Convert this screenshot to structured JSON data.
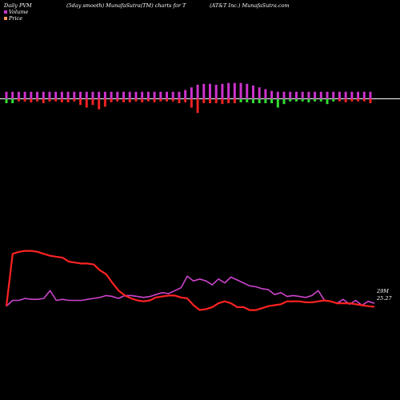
{
  "header": {
    "left": "Daily PVM",
    "center_left": "(5day smooth) MunafaSutra(TM) charts for T",
    "center_right": "(AT&T Inc.) MunafaSutra.com"
  },
  "legend": {
    "items": [
      {
        "label": "Volume",
        "color": "#cc33cc"
      },
      {
        "label": "Price",
        "color": "#ff9966"
      }
    ]
  },
  "chart_data": {
    "type": "line",
    "title": "(5day smooth) MunafaSutra(TM) charts for T",
    "last_values": {
      "volume": "29M",
      "price": "25.27"
    },
    "volume_bars": {
      "baseline_note": "volume histogram around baseline; up=magenta, down=red/green",
      "up": [
        8,
        8,
        8,
        8,
        8,
        8,
        8,
        8,
        8,
        8,
        8,
        8,
        8,
        8,
        8,
        8,
        8,
        8,
        8,
        8,
        8,
        8,
        8,
        8,
        8,
        8,
        8,
        8,
        8,
        10,
        13,
        16,
        17,
        17,
        16,
        17,
        18,
        18,
        18,
        17,
        15,
        13,
        11,
        9,
        8,
        8,
        8,
        8,
        8,
        8,
        8,
        8,
        8,
        8,
        8,
        8,
        8,
        8,
        8,
        8
      ],
      "down": [
        5,
        5,
        3,
        3,
        4,
        3,
        5,
        3,
        3,
        4,
        4,
        3,
        7,
        10,
        7,
        12,
        9,
        4,
        3,
        4,
        4,
        3,
        4,
        3,
        4,
        3,
        3,
        3,
        5,
        4,
        10,
        16,
        5,
        5,
        5,
        6,
        5,
        5,
        4,
        4,
        5,
        5,
        5,
        5,
        10,
        6,
        3,
        3,
        3,
        4,
        3,
        3,
        6,
        3,
        3,
        4,
        3,
        3,
        3,
        5
      ],
      "down_colors": [
        "g",
        "g",
        "r",
        "r",
        "r",
        "r",
        "r",
        "r",
        "r",
        "r",
        "r",
        "r",
        "r",
        "r",
        "r",
        "r",
        "r",
        "r",
        "r",
        "r",
        "r",
        "r",
        "r",
        "r",
        "r",
        "r",
        "r",
        "r",
        "r",
        "r",
        "r",
        "r",
        "r",
        "r",
        "r",
        "r",
        "r",
        "r",
        "g",
        "g",
        "g",
        "g",
        "g",
        "g",
        "g",
        "g",
        "g",
        "g",
        "g",
        "g",
        "g",
        "g",
        "g",
        "g",
        "r",
        "r",
        "r",
        "r",
        "r",
        "r"
      ]
    },
    "series": [
      {
        "name": "Price",
        "color": "#ff2222",
        "values": [
          25.3,
          28.0,
          28.1,
          28.15,
          28.15,
          28.1,
          28.0,
          27.9,
          27.85,
          27.8,
          27.6,
          27.55,
          27.5,
          27.5,
          27.45,
          27.15,
          26.95,
          26.5,
          26.1,
          25.85,
          25.7,
          25.6,
          25.55,
          25.6,
          25.75,
          25.8,
          25.85,
          25.85,
          25.75,
          25.7,
          25.35,
          25.1,
          25.15,
          25.25,
          25.45,
          25.55,
          25.45,
          25.25,
          25.25,
          25.1,
          25.1,
          25.2,
          25.3,
          25.35,
          25.4,
          25.55,
          25.55,
          25.55,
          25.5,
          25.5,
          25.55,
          25.6,
          25.55,
          25.45,
          25.45,
          25.45,
          25.4,
          25.35,
          25.3,
          25.27
        ]
      },
      {
        "name": "Volume",
        "color": "#cc44cc",
        "values": [
          25.3,
          25.6,
          25.6,
          25.7,
          25.65,
          25.65,
          25.7,
          26.1,
          25.6,
          25.65,
          25.6,
          25.6,
          25.6,
          25.65,
          25.7,
          25.75,
          25.85,
          25.8,
          25.7,
          25.85,
          25.85,
          25.8,
          25.75,
          25.8,
          25.9,
          26.0,
          25.95,
          26.1,
          26.25,
          26.85,
          26.6,
          26.7,
          26.6,
          26.4,
          26.7,
          26.5,
          26.8,
          26.65,
          26.5,
          26.35,
          26.3,
          26.2,
          26.15,
          25.9,
          26.0,
          25.8,
          25.85,
          25.8,
          25.75,
          25.85,
          26.1,
          25.6,
          25.55,
          25.45,
          25.65,
          25.4,
          25.6,
          25.35,
          25.55,
          25.45
        ]
      }
    ]
  }
}
